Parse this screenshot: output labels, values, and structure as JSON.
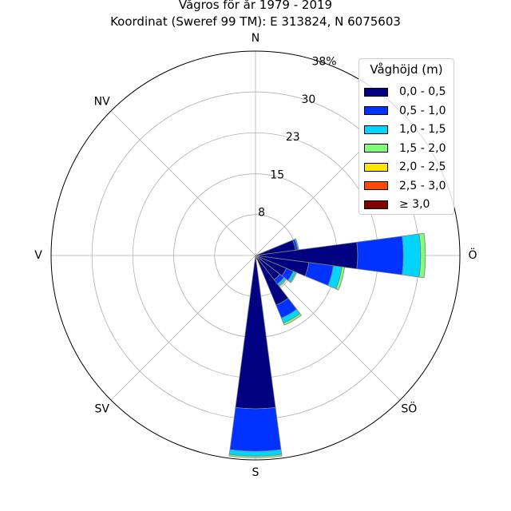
{
  "chart_data": {
    "type": "polar-stacked-bar",
    "title": "Vågros för år 1979 - 2019",
    "subtitle": "Koordinat (Sweref 99 TM): E 313824, N 6075603",
    "direction_labels": [
      "N",
      "NV",
      "V",
      "SV",
      "S",
      "SÖ",
      "Ö"
    ],
    "radial_ticks": [
      "8",
      "15",
      "23",
      "30",
      "38%"
    ],
    "radial_tick_values": [
      7.6,
      15.2,
      22.8,
      30.4,
      38.0
    ],
    "rmax": 38.0,
    "legend": {
      "title": "Våghöjd (m)",
      "placement": "top-right",
      "bins": [
        "0,0 - 0,5",
        "0,5 - 1,0",
        "1,0 - 1,5",
        "1,5 - 2,0",
        "2,0 - 2,5",
        "2,5 - 3,0",
        "≥ 3,0"
      ],
      "colors": [
        "#000080",
        "#0033ff",
        "#00d4ff",
        "#7cff79",
        "#ffe600",
        "#ff4a00",
        "#800000"
      ]
    },
    "sector_width_deg": 15,
    "sectors": [
      {
        "direction_deg": 75,
        "values": [
          7.5,
          0.4,
          0.2,
          0.0,
          0.0,
          0.0,
          0.0
        ]
      },
      {
        "direction_deg": 90,
        "values": [
          19.0,
          8.5,
          3.2,
          0.9,
          0.0,
          0.0,
          0.0
        ]
      },
      {
        "direction_deg": 105,
        "values": [
          10.0,
          4.6,
          1.6,
          0.5,
          0.0,
          0.0,
          0.0
        ]
      },
      {
        "direction_deg": 120,
        "values": [
          6.2,
          1.4,
          0.5,
          0.2,
          0.0,
          0.0,
          0.0
        ]
      },
      {
        "direction_deg": 135,
        "values": [
          5.7,
          1.0,
          0.4,
          0.2,
          0.0,
          0.0,
          0.0
        ]
      },
      {
        "direction_deg": 150,
        "values": [
          10.0,
          2.6,
          1.0,
          0.4,
          0.0,
          0.0,
          0.0
        ]
      },
      {
        "direction_deg": 165,
        "values": [
          0.6,
          0.1,
          0.0,
          0.0,
          0.0,
          0.0,
          0.0
        ]
      },
      {
        "direction_deg": 180,
        "values": [
          28.5,
          7.9,
          0.9,
          0.3,
          0.0,
          0.0,
          0.0
        ]
      }
    ],
    "grid": true
  }
}
